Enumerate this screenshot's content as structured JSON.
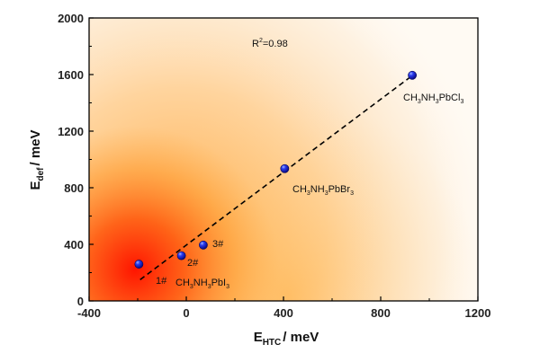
{
  "chart_data": {
    "type": "scatter",
    "title": "",
    "xlabel": {
      "main": "E",
      "sub": "HTC",
      "unit": "/ meV"
    },
    "ylabel": {
      "main": "E",
      "sub": "def",
      "unit": "/ meV"
    },
    "xlim": [
      -400,
      1200
    ],
    "ylim": [
      0,
      2000
    ],
    "xticks": [
      -400,
      0,
      400,
      800,
      1200
    ],
    "xtick_labels": [
      "-400",
      "0",
      "400",
      "800",
      "1200"
    ],
    "yticks": [
      0,
      400,
      800,
      1200,
      1600,
      2000
    ],
    "ytick_labels": [
      "0",
      "400",
      "800",
      "1200",
      "1600",
      "2000"
    ],
    "grid": false,
    "series": [
      {
        "name": "points",
        "color": "#1a1adb",
        "points": [
          {
            "x": -195,
            "y": 260
          },
          {
            "x": -20,
            "y": 320
          },
          {
            "x": 70,
            "y": 395
          },
          {
            "x": 405,
            "y": 935
          },
          {
            "x": 930,
            "y": 1595
          }
        ]
      }
    ],
    "fit_line": {
      "style": "dashed",
      "color": "#000000",
      "x": [
        -190,
        920
      ],
      "y": [
        150,
        1580
      ]
    },
    "annotations": {
      "r2": {
        "base": "R",
        "sup": "2",
        "rest": "=0.98"
      },
      "point_labels": [
        "1#",
        "2#",
        "3#"
      ],
      "compounds": [
        {
          "parts": [
            "CH",
            "3",
            "NH",
            "3",
            "PbI",
            "3"
          ]
        },
        {
          "parts": [
            "CH",
            "3",
            "NH",
            "3",
            "PbBr",
            "3"
          ]
        },
        {
          "parts": [
            "CH",
            "3",
            "NH",
            "3",
            "PbCl",
            "3"
          ]
        }
      ]
    },
    "colors": {
      "heat_core": "#ff1a00",
      "heat_mid": "#ff9b1a",
      "heat_edge": "#fff4e0",
      "axis": "#000000"
    }
  }
}
